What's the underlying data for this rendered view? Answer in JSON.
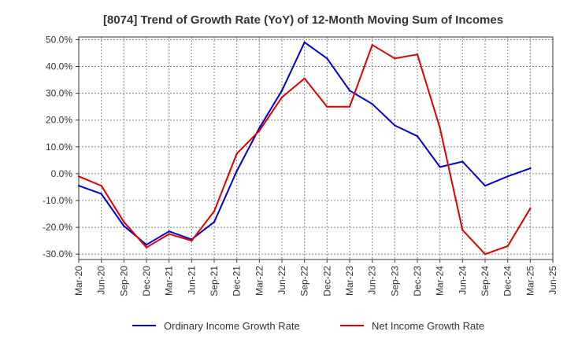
{
  "chart_data": {
    "type": "line",
    "title": "[8074]  Trend of Growth Rate (YoY) of 12-Month Moving Sum of Incomes",
    "x": [
      "Mar-20",
      "Jun-20",
      "Sep-20",
      "Dec-20",
      "Mar-21",
      "Jun-21",
      "Sep-21",
      "Dec-21",
      "Mar-22",
      "Jun-22",
      "Sep-22",
      "Dec-22",
      "Mar-23",
      "Jun-23",
      "Sep-23",
      "Dec-23",
      "Mar-24",
      "Jun-24",
      "Sep-24",
      "Dec-24",
      "Mar-25",
      "Jun-25"
    ],
    "y_ticks": [
      "50.0%",
      "40.0%",
      "30.0%",
      "20.0%",
      "10.0%",
      "0.0%",
      "-10.0%",
      "-20.0%",
      "-30.0%"
    ],
    "y_tick_values": [
      50,
      40,
      30,
      20,
      10,
      0,
      -10,
      -20,
      -30
    ],
    "ylim": [
      -32,
      51
    ],
    "grid": true,
    "legend_position": "bottom",
    "series": [
      {
        "name": "Ordinary Income Growth Rate",
        "color": "#0000cc",
        "values": [
          -4.5,
          -7.5,
          -19.5,
          -26.5,
          -21.5,
          -24.5,
          -18.0,
          1.0,
          17.0,
          31.0,
          49.0,
          43.0,
          31.0,
          26.0,
          18.0,
          14.0,
          2.5,
          4.5,
          -4.5,
          -1.0,
          2.0,
          null
        ]
      },
      {
        "name": "Net Income Growth Rate",
        "color": "#dd0000",
        "values": [
          -1.0,
          -4.5,
          -18.0,
          -27.5,
          -22.5,
          -25.0,
          -14.0,
          7.5,
          16.0,
          28.5,
          35.5,
          25.0,
          25.0,
          48.0,
          43.0,
          44.5,
          17.0,
          -21.0,
          -30.0,
          -27.0,
          -13.0,
          null
        ]
      }
    ]
  }
}
